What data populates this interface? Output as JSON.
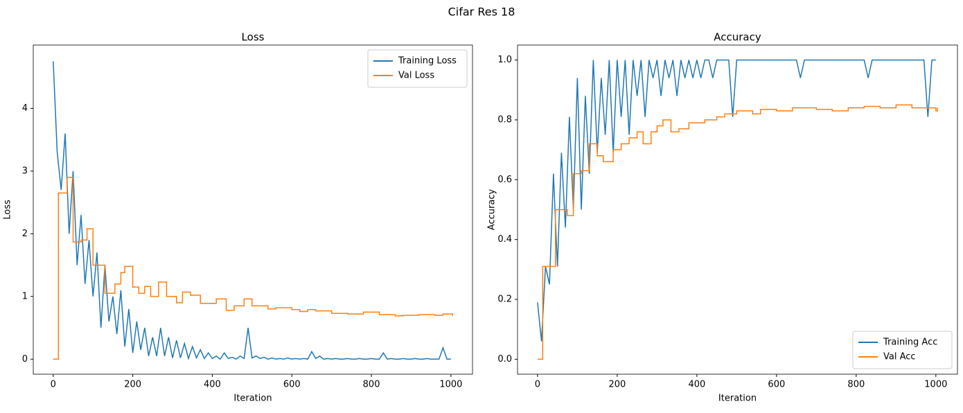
{
  "title": "Cifar Res 18",
  "chart_data": [
    {
      "type": "line",
      "title": "Loss",
      "xlabel": "Iteration",
      "ylabel": "Loss",
      "xlim": [
        -50.2,
        1054.2
      ],
      "ylim": [
        -0.24,
        5.01
      ],
      "xticks": [
        0,
        200,
        400,
        600,
        800,
        1000
      ],
      "yticks": [
        0,
        1,
        2,
        3,
        4
      ],
      "legend": "upper right",
      "series": [
        {
          "name": "Training Loss",
          "color": "#1f77b4",
          "drawstyle": "default",
          "x": [
            0,
            10,
            20,
            30,
            40,
            50,
            60,
            70,
            80,
            90,
            100,
            110,
            120,
            130,
            140,
            150,
            160,
            170,
            180,
            190,
            200,
            210,
            220,
            230,
            240,
            250,
            260,
            270,
            280,
            290,
            300,
            310,
            320,
            330,
            340,
            350,
            360,
            370,
            380,
            390,
            400,
            410,
            420,
            430,
            440,
            450,
            460,
            470,
            480,
            490,
            500,
            510,
            520,
            530,
            540,
            550,
            560,
            570,
            580,
            590,
            600,
            610,
            620,
            630,
            640,
            650,
            660,
            670,
            680,
            690,
            700,
            710,
            720,
            730,
            740,
            750,
            760,
            770,
            780,
            790,
            800,
            810,
            820,
            830,
            840,
            850,
            860,
            870,
            880,
            890,
            900,
            910,
            920,
            930,
            940,
            950,
            960,
            970,
            980,
            990,
            1000
          ],
          "values": [
            4.75,
            3.3,
            2.7,
            3.6,
            2.0,
            3.0,
            1.5,
            2.3,
            1.2,
            1.9,
            1.0,
            1.7,
            0.5,
            1.5,
            0.6,
            1.0,
            0.4,
            1.1,
            0.2,
            0.8,
            0.1,
            0.6,
            0.15,
            0.5,
            0.05,
            0.35,
            0.05,
            0.5,
            0.05,
            0.35,
            0.02,
            0.3,
            0.02,
            0.25,
            0.01,
            0.2,
            0.02,
            0.15,
            0.01,
            0.1,
            0.01,
            0.05,
            0,
            0.1,
            0.01,
            0.03,
            0,
            0.05,
            0.01,
            0.5,
            0.02,
            0.05,
            0.01,
            0.03,
            0,
            0.02,
            0,
            0.01,
            0,
            0.02,
            0,
            0.01,
            0,
            0.01,
            0,
            0.12,
            0.01,
            0.05,
            0,
            0.01,
            0,
            0.01,
            0,
            0,
            0.01,
            0,
            0,
            0.01,
            0,
            0,
            0.01,
            0,
            0,
            0.1,
            0,
            0.01,
            0,
            0,
            0.01,
            0,
            0,
            0.01,
            0,
            0,
            0.01,
            0,
            0,
            0,
            0.18,
            0,
            0
          ]
        },
        {
          "name": "Val Loss",
          "color": "#ff7f0e",
          "drawstyle": "steps-post",
          "x": [
            0,
            13,
            35,
            50,
            70,
            85,
            100,
            130,
            155,
            170,
            180,
            200,
            215,
            230,
            245,
            265,
            285,
            310,
            325,
            345,
            370,
            410,
            435,
            455,
            480,
            500,
            540,
            560,
            600,
            620,
            640,
            660,
            700,
            740,
            780,
            820,
            860,
            880,
            920,
            960,
            980,
            1004
          ],
          "values": [
            0,
            2.65,
            2.9,
            1.87,
            1.9,
            2.08,
            1.5,
            1.05,
            1.2,
            1.38,
            1.48,
            1.15,
            1.05,
            1.16,
            1.0,
            1.23,
            1.0,
            0.9,
            1.07,
            1.02,
            0.89,
            0.96,
            0.78,
            0.85,
            0.96,
            0.85,
            0.8,
            0.82,
            0.79,
            0.76,
            0.79,
            0.77,
            0.73,
            0.72,
            0.75,
            0.71,
            0.69,
            0.7,
            0.71,
            0.7,
            0.72,
            0.69
          ]
        }
      ]
    },
    {
      "type": "line",
      "title": "Accuracy",
      "xlabel": "Iteration",
      "ylabel": "Accuracy",
      "xlim": [
        -50.2,
        1054.2
      ],
      "ylim": [
        -0.05,
        1.05
      ],
      "xticks": [
        0,
        200,
        400,
        600,
        800,
        1000
      ],
      "yticks": [
        {
          "value": 0,
          "label": "0.0"
        },
        0.2,
        0.4,
        0.6,
        0.8,
        {
          "value": 1,
          "label": "1.0"
        }
      ],
      "legend": "lower right",
      "series": [
        {
          "name": "Training Acc",
          "color": "#1f77b4",
          "drawstyle": "default",
          "x": [
            0,
            10,
            20,
            30,
            40,
            50,
            60,
            70,
            80,
            90,
            100,
            110,
            120,
            130,
            140,
            150,
            160,
            170,
            180,
            190,
            200,
            210,
            220,
            230,
            240,
            250,
            260,
            270,
            280,
            290,
            300,
            310,
            320,
            330,
            340,
            350,
            360,
            370,
            380,
            390,
            400,
            410,
            420,
            430,
            440,
            450,
            460,
            470,
            480,
            490,
            500,
            510,
            520,
            530,
            540,
            550,
            560,
            570,
            580,
            590,
            600,
            610,
            620,
            630,
            640,
            650,
            660,
            670,
            680,
            690,
            700,
            710,
            720,
            730,
            740,
            750,
            760,
            770,
            780,
            790,
            800,
            810,
            820,
            830,
            840,
            850,
            860,
            870,
            880,
            890,
            900,
            910,
            920,
            930,
            940,
            950,
            960,
            970,
            980,
            990,
            1000
          ],
          "values": [
            0.19,
            0.06,
            0.31,
            0.25,
            0.62,
            0.31,
            0.69,
            0.44,
            0.81,
            0.5,
            0.94,
            0.5,
            0.88,
            0.62,
            1.0,
            0.69,
            0.94,
            0.75,
            1.0,
            0.69,
            1.0,
            0.81,
            1.0,
            0.75,
            1.0,
            0.88,
            1.0,
            0.81,
            1.0,
            0.94,
            1.0,
            0.88,
            1.0,
            0.94,
            1.0,
            0.88,
            1.0,
            0.94,
            1.0,
            0.94,
            1.0,
            0.94,
            1.0,
            1.0,
            0.94,
            1.0,
            1.0,
            1.0,
            1.0,
            0.81,
            1.0,
            1.0,
            1.0,
            1.0,
            1.0,
            1.0,
            1.0,
            1.0,
            1.0,
            1.0,
            1.0,
            1.0,
            1.0,
            1.0,
            1.0,
            1.0,
            0.94,
            1.0,
            1.0,
            1.0,
            1.0,
            1.0,
            1.0,
            1.0,
            1.0,
            1.0,
            1.0,
            1.0,
            1.0,
            1.0,
            1.0,
            1.0,
            1.0,
            0.94,
            1.0,
            1.0,
            1.0,
            1.0,
            1.0,
            1.0,
            1.0,
            1.0,
            1.0,
            1.0,
            1.0,
            1.0,
            1.0,
            1.0,
            0.81,
            1.0,
            1.0
          ]
        },
        {
          "name": "Val Acc",
          "color": "#ff7f0e",
          "drawstyle": "steps-post",
          "x": [
            0,
            13,
            45,
            75,
            90,
            110,
            130,
            150,
            165,
            190,
            210,
            230,
            250,
            265,
            285,
            300,
            315,
            335,
            355,
            380,
            420,
            450,
            470,
            500,
            540,
            560,
            600,
            640,
            700,
            740,
            780,
            820,
            860,
            900,
            940,
            1000,
            1004
          ],
          "values": [
            0,
            0.31,
            0.5,
            0.48,
            0.62,
            0.63,
            0.72,
            0.68,
            0.66,
            0.7,
            0.72,
            0.74,
            0.76,
            0.72,
            0.76,
            0.78,
            0.8,
            0.76,
            0.77,
            0.79,
            0.8,
            0.81,
            0.82,
            0.83,
            0.82,
            0.835,
            0.83,
            0.84,
            0.835,
            0.83,
            0.84,
            0.845,
            0.84,
            0.85,
            0.84,
            0.83,
            0.84
          ]
        }
      ]
    }
  ]
}
